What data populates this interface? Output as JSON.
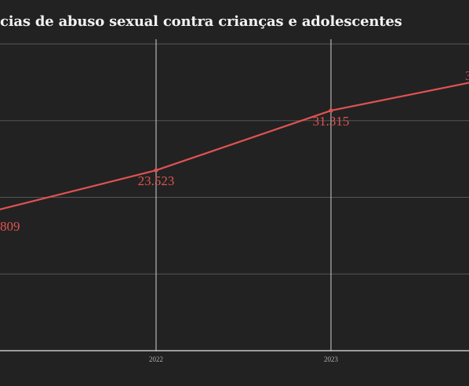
{
  "chart_data": {
    "type": "line",
    "title": "cias de abuso sexual contra crianças e adolescentes",
    "x": [
      "",
      "2022",
      "2023",
      ""
    ],
    "series": [
      {
        "values": [
          17809,
          23523,
          31315,
          35900
        ]
      }
    ],
    "data_labels": [
      "809",
      "23.523",
      "31.315",
      "3"
    ],
    "ylim": [
      0,
      40000
    ],
    "grid": true,
    "color": "#e05252"
  }
}
